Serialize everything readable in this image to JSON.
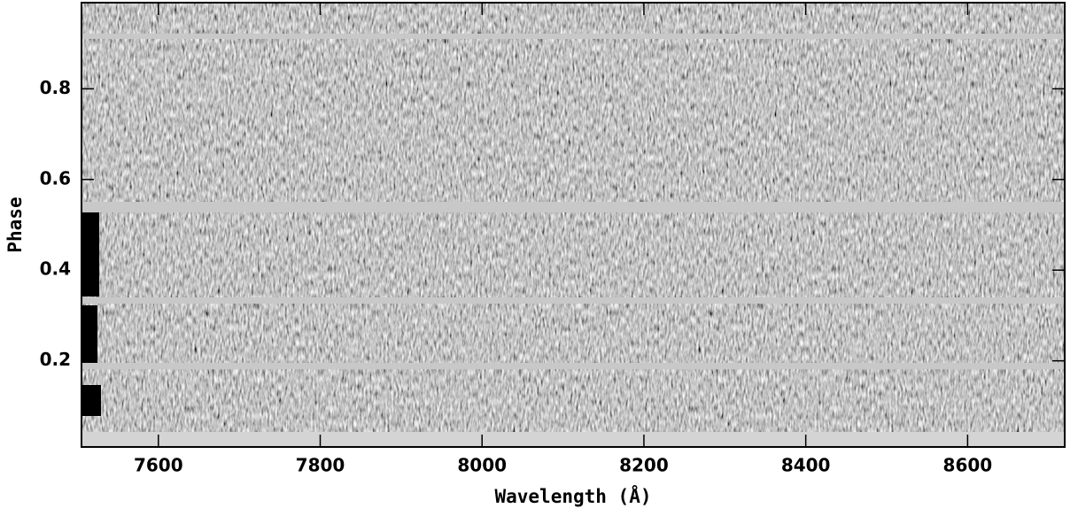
{
  "chart_data": {
    "type": "image",
    "x_label": "Wavelength (Å)",
    "y_label": "Phase",
    "xlim": [
      7505,
      8720
    ],
    "xticks": [
      7600,
      7800,
      8000,
      8200,
      8400,
      8600
    ],
    "ylim": [
      0.01,
      0.99
    ],
    "yticks": [
      0.2,
      0.4,
      0.6,
      0.8
    ]
  }
}
